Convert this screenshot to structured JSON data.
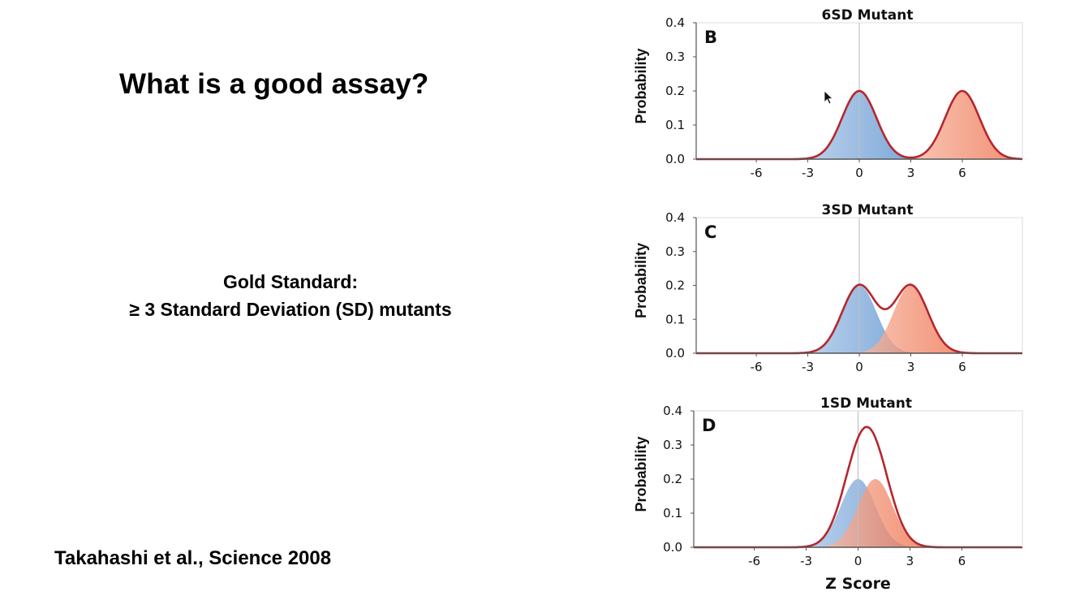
{
  "slide": {
    "title": "What is a good assay?",
    "gold_standard_heading": "Gold Standard:",
    "gold_standard_text": "≥ 3 Standard Deviation (SD) mutants",
    "citation": "Takahashi et al., Science 2008"
  },
  "colors": {
    "control_fill": "#5b92d1",
    "mutant_fill": "#ef6a45",
    "sum_curve": "#b5272e",
    "axis": "#555555",
    "zero_line": "#c0c0c0"
  },
  "chart_data": [
    {
      "type": "area",
      "panel_label": "B",
      "title": "6SD Mutant",
      "ylabel": "Probability",
      "xlabel": "",
      "xlim": [
        -9.5,
        9.5
      ],
      "ylim": [
        0,
        0.4
      ],
      "xticks": [
        -6,
        -3,
        0,
        3,
        6
      ],
      "yticks": [
        "0.0",
        "0.1",
        "0.2",
        "0.3",
        "0.4"
      ],
      "series": [
        {
          "role": "control",
          "mean": 0,
          "peak": 0.2
        },
        {
          "role": "mutant",
          "mean": 6,
          "peak": 0.2
        },
        {
          "role": "sum"
        }
      ]
    },
    {
      "type": "area",
      "panel_label": "C",
      "title": "3SD Mutant",
      "ylabel": "Probability",
      "xlabel": "",
      "xlim": [
        -9.5,
        9.5
      ],
      "ylim": [
        0,
        0.4
      ],
      "xticks": [
        -6,
        -3,
        0,
        3,
        6
      ],
      "yticks": [
        "0.0",
        "0.1",
        "0.2",
        "0.3",
        "0.4"
      ],
      "series": [
        {
          "role": "control",
          "mean": 0,
          "peak": 0.2
        },
        {
          "role": "mutant",
          "mean": 3,
          "peak": 0.2
        },
        {
          "role": "sum"
        }
      ]
    },
    {
      "type": "area",
      "panel_label": "D",
      "title": "1SD Mutant",
      "ylabel": "Probability",
      "xlabel": "Z Score",
      "xlim": [
        -9.5,
        9.5
      ],
      "ylim": [
        0,
        0.4
      ],
      "xticks": [
        -6,
        -3,
        0,
        3,
        6
      ],
      "yticks": [
        "0.0",
        "0.1",
        "0.2",
        "0.3",
        "0.4"
      ],
      "series": [
        {
          "role": "control",
          "mean": 0,
          "peak": 0.2
        },
        {
          "role": "mutant",
          "mean": 1,
          "peak": 0.2
        },
        {
          "role": "sum"
        }
      ]
    }
  ]
}
